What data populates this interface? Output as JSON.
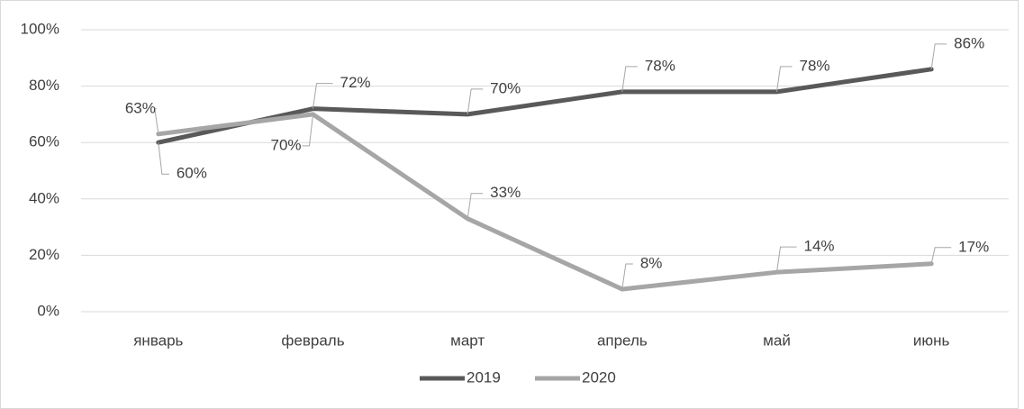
{
  "chart_data": {
    "type": "line",
    "categories": [
      "январь",
      "февраль",
      "март",
      "апрель",
      "май",
      "июнь"
    ],
    "series": [
      {
        "name": "2019",
        "color": "#595959",
        "values": [
          60,
          72,
          70,
          78,
          78,
          86
        ],
        "value_labels": [
          "60%",
          "72%",
          "70%",
          "78%",
          "78%",
          "86%"
        ]
      },
      {
        "name": "2020",
        "color": "#a6a6a6",
        "values": [
          63,
          70,
          33,
          8,
          14,
          17
        ],
        "value_labels": [
          "63%",
          "70%",
          "33%",
          "8%",
          "14%",
          "17%"
        ]
      }
    ],
    "ylim": [
      0,
      100
    ],
    "yticks": [
      {
        "value": 0,
        "label": "0%"
      },
      {
        "value": 20,
        "label": "20%"
      },
      {
        "value": 40,
        "label": "40%"
      },
      {
        "value": 60,
        "label": "60%"
      },
      {
        "value": 80,
        "label": "80%"
      },
      {
        "value": 100,
        "label": "100%"
      }
    ],
    "grid": true,
    "legend": "bottom"
  }
}
